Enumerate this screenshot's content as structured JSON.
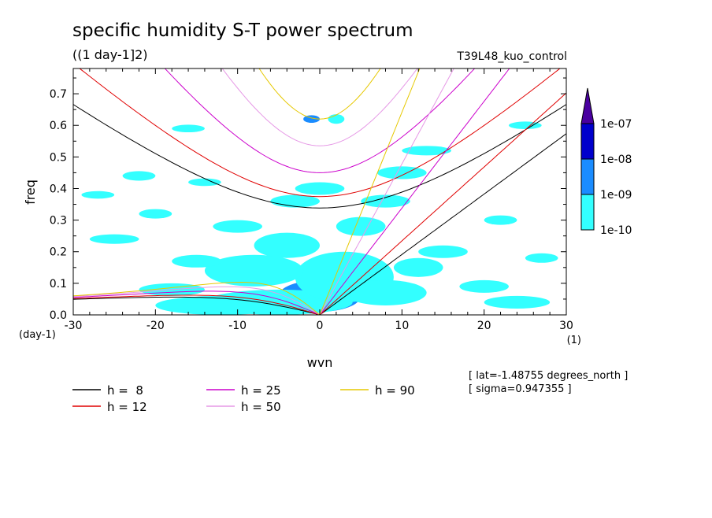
{
  "chart_data": {
    "type": "heatmap",
    "title": "specific humidity S-T power spectrum",
    "subtitle": "((1 day-1]2)",
    "run_label": "T39L48_kuo_control",
    "xlabel": "wvn",
    "ylabel": "freq",
    "x_unit": "(1)",
    "y_unit": "(day-1)",
    "xlim": [
      -30,
      30
    ],
    "ylim": [
      0,
      0.78
    ],
    "x_ticks": [
      -30,
      -20,
      -10,
      0,
      10,
      20,
      30
    ],
    "y_ticks": [
      0.0,
      0.1,
      0.2,
      0.3,
      0.4,
      0.5,
      0.6,
      0.7
    ],
    "x_tick_labels": [
      "-30",
      "-20",
      "-10",
      "0",
      "10",
      "20",
      "30"
    ],
    "y_tick_labels": [
      "0.0",
      "0.1",
      "0.2",
      "0.3",
      "0.4",
      "0.5",
      "0.6",
      "0.7"
    ],
    "grid": false,
    "colorbar": {
      "levels": [
        "1e-10",
        "1e-09",
        "1e-08",
        "1e-07"
      ],
      "colors": [
        "#33ffff",
        "#1a8cff",
        "#0000cc",
        "#4a00a0"
      ]
    },
    "info": [
      "[ lat=-1.48755 degrees_north ]",
      "[ sigma=0.947355 ]"
    ],
    "series": [
      {
        "name": "h =  8",
        "h": 8,
        "color": "#000000"
      },
      {
        "name": "h = 12",
        "h": 12,
        "color": "#e00000"
      },
      {
        "name": "h = 25",
        "h": 25,
        "color": "#cc00cc"
      },
      {
        "name": "h = 50",
        "h": 50,
        "color": "#e699e6"
      },
      {
        "name": "h = 90",
        "h": 90,
        "color": "#e6c800"
      }
    ],
    "spectrum_blobs": [
      {
        "x": 0,
        "y": 0.06,
        "rx": 5,
        "ry": 0.05,
        "level": 1
      },
      {
        "x": -2,
        "y": 0.04,
        "rx": 2,
        "ry": 0.03,
        "level": 2
      },
      {
        "x": -5,
        "y": 0.04,
        "rx": 9,
        "ry": 0.04,
        "level": 0
      },
      {
        "x": -12,
        "y": 0.03,
        "rx": 8,
        "ry": 0.03,
        "level": 0
      },
      {
        "x": 3,
        "y": 0.12,
        "rx": 6,
        "ry": 0.08,
        "level": 0
      },
      {
        "x": -8,
        "y": 0.14,
        "rx": 6,
        "ry": 0.05,
        "level": 0
      },
      {
        "x": 8,
        "y": 0.07,
        "rx": 5,
        "ry": 0.04,
        "level": 0
      },
      {
        "x": -4,
        "y": 0.22,
        "rx": 4,
        "ry": 0.04,
        "level": 0
      },
      {
        "x": 12,
        "y": 0.15,
        "rx": 3,
        "ry": 0.03,
        "level": 0
      },
      {
        "x": -18,
        "y": 0.08,
        "rx": 4,
        "ry": 0.02,
        "level": 0
      },
      {
        "x": -15,
        "y": 0.17,
        "rx": 3,
        "ry": 0.02,
        "level": 0
      },
      {
        "x": 5,
        "y": 0.28,
        "rx": 3,
        "ry": 0.03,
        "level": 0
      },
      {
        "x": -10,
        "y": 0.28,
        "rx": 3,
        "ry": 0.02,
        "level": 0
      },
      {
        "x": 0,
        "y": 0.4,
        "rx": 3,
        "ry": 0.02,
        "level": 0
      },
      {
        "x": -3,
        "y": 0.36,
        "rx": 3,
        "ry": 0.02,
        "level": 0
      },
      {
        "x": -25,
        "y": 0.24,
        "rx": 3,
        "ry": 0.015,
        "level": 0
      },
      {
        "x": -20,
        "y": 0.32,
        "rx": 2,
        "ry": 0.015,
        "level": 0
      },
      {
        "x": 15,
        "y": 0.2,
        "rx": 3,
        "ry": 0.02,
        "level": 0
      },
      {
        "x": 20,
        "y": 0.09,
        "rx": 3,
        "ry": 0.02,
        "level": 0
      },
      {
        "x": 22,
        "y": 0.3,
        "rx": 2,
        "ry": 0.015,
        "level": 0
      },
      {
        "x": -22,
        "y": 0.44,
        "rx": 2,
        "ry": 0.015,
        "level": 0
      },
      {
        "x": 10,
        "y": 0.45,
        "rx": 3,
        "ry": 0.02,
        "level": 0
      },
      {
        "x": 2,
        "y": 0.62,
        "rx": 1,
        "ry": 0.015,
        "level": 0
      },
      {
        "x": -1,
        "y": 0.62,
        "rx": 1,
        "ry": 0.012,
        "level": 1
      },
      {
        "x": -14,
        "y": 0.42,
        "rx": 2,
        "ry": 0.012,
        "level": 0
      },
      {
        "x": 13,
        "y": 0.52,
        "rx": 3,
        "ry": 0.015,
        "level": 0
      },
      {
        "x": -16,
        "y": 0.59,
        "rx": 2,
        "ry": 0.012,
        "level": 0
      },
      {
        "x": 25,
        "y": 0.6,
        "rx": 2,
        "ry": 0.012,
        "level": 0
      },
      {
        "x": 24,
        "y": 0.04,
        "rx": 4,
        "ry": 0.02,
        "level": 0
      },
      {
        "x": 27,
        "y": 0.18,
        "rx": 2,
        "ry": 0.015,
        "level": 0
      },
      {
        "x": -27,
        "y": 0.38,
        "rx": 2,
        "ry": 0.012,
        "level": 0
      },
      {
        "x": 8,
        "y": 0.36,
        "rx": 3,
        "ry": 0.02,
        "level": 0
      }
    ]
  }
}
